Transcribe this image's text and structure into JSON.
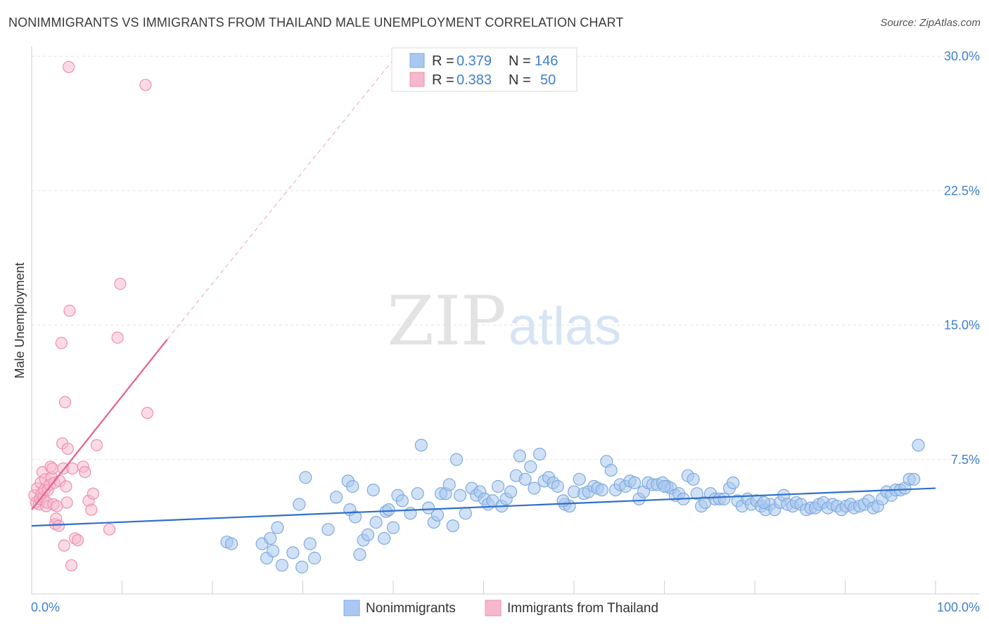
{
  "header": {
    "title": "NONIMMIGRANTS VS IMMIGRANTS FROM THAILAND MALE UNEMPLOYMENT CORRELATION CHART",
    "source": "Source: ZipAtlas.com"
  },
  "watermark": {
    "zip": "ZIP",
    "atlas": "atlas"
  },
  "legend": {
    "r_label": "R =",
    "n_label": "N =",
    "rows": [
      {
        "r": "0.379",
        "n": "146",
        "color": "#a9c8ef"
      },
      {
        "r": "0.383",
        "n": "50",
        "color": "#f6b8cb"
      }
    ]
  },
  "colors": {
    "blue_fill": "#a9c8ef",
    "blue_stroke": "#7eaae0",
    "blue_line": "#2f6fcc",
    "pink_fill": "#f6b8cb",
    "pink_stroke": "#ee8fae",
    "pink_line": "#e8608a",
    "axis_text": "#3f7fcf"
  },
  "chart_data": {
    "type": "scatter",
    "title": "NONIMMIGRANTS VS IMMIGRANTS FROM THAILAND MALE UNEMPLOYMENT CORRELATION CHART",
    "xlabel": "",
    "ylabel": "Male Unemployment",
    "xlim": [
      0,
      100
    ],
    "ylim": [
      0,
      30.0
    ],
    "x_tick_labels": [
      "0.0%",
      "100.0%"
    ],
    "y_ticks": [
      7.5,
      15.0,
      22.5,
      30.0
    ],
    "y_tick_labels": [
      "7.5%",
      "15.0%",
      "22.5%",
      "30.0%"
    ],
    "grid": true,
    "legend_position": "bottom",
    "series": [
      {
        "name": "Nonimmigrants",
        "r": 0.379,
        "n": 146,
        "trend": {
          "x": [
            0,
            100
          ],
          "y": [
            3.8,
            5.9
          ]
        },
        "points": [
          [
            21.6,
            2.9
          ],
          [
            22.1,
            2.8
          ],
          [
            25.5,
            2.8
          ],
          [
            26.0,
            2.0
          ],
          [
            26.4,
            3.1
          ],
          [
            26.7,
            2.4
          ],
          [
            27.2,
            3.7
          ],
          [
            27.7,
            1.6
          ],
          [
            28.9,
            2.3
          ],
          [
            29.6,
            5.0
          ],
          [
            29.9,
            1.5
          ],
          [
            30.3,
            6.5
          ],
          [
            30.8,
            2.8
          ],
          [
            31.3,
            2.0
          ],
          [
            32.8,
            3.6
          ],
          [
            33.7,
            5.4
          ],
          [
            35.0,
            6.3
          ],
          [
            35.2,
            4.7
          ],
          [
            35.8,
            4.3
          ],
          [
            36.3,
            2.2
          ],
          [
            36.7,
            3.0
          ],
          [
            37.2,
            3.3
          ],
          [
            37.8,
            5.8
          ],
          [
            38.1,
            4.0
          ],
          [
            39.0,
            3.1
          ],
          [
            39.2,
            4.6
          ],
          [
            39.5,
            4.7
          ],
          [
            40.0,
            3.7
          ],
          [
            40.5,
            5.5
          ],
          [
            41.0,
            5.2
          ],
          [
            41.9,
            4.5
          ],
          [
            42.7,
            5.6
          ],
          [
            43.1,
            8.3
          ],
          [
            43.9,
            4.8
          ],
          [
            44.5,
            4.0
          ],
          [
            44.9,
            4.4
          ],
          [
            45.3,
            5.6
          ],
          [
            45.8,
            5.6
          ],
          [
            46.6,
            3.8
          ],
          [
            47.0,
            7.5
          ],
          [
            47.4,
            5.5
          ],
          [
            48.0,
            4.5
          ],
          [
            48.7,
            5.9
          ],
          [
            49.2,
            5.5
          ],
          [
            49.6,
            5.7
          ],
          [
            50.1,
            5.3
          ],
          [
            50.5,
            5.0
          ],
          [
            51.0,
            5.2
          ],
          [
            51.6,
            6.0
          ],
          [
            52.0,
            4.9
          ],
          [
            52.5,
            5.3
          ],
          [
            53.0,
            5.7
          ],
          [
            53.6,
            6.6
          ],
          [
            54.0,
            7.7
          ],
          [
            54.6,
            6.4
          ],
          [
            55.2,
            7.1
          ],
          [
            55.6,
            5.9
          ],
          [
            56.2,
            7.8
          ],
          [
            56.7,
            6.3
          ],
          [
            57.2,
            6.5
          ],
          [
            57.7,
            6.2
          ],
          [
            58.2,
            6.0
          ],
          [
            59.0,
            5.0
          ],
          [
            59.5,
            4.9
          ],
          [
            60.0,
            5.7
          ],
          [
            60.6,
            6.4
          ],
          [
            61.1,
            5.6
          ],
          [
            61.6,
            5.7
          ],
          [
            62.2,
            6.0
          ],
          [
            62.6,
            5.9
          ],
          [
            63.1,
            5.8
          ],
          [
            63.6,
            7.4
          ],
          [
            64.1,
            6.9
          ],
          [
            64.6,
            5.8
          ],
          [
            65.1,
            6.1
          ],
          [
            65.7,
            6.0
          ],
          [
            66.2,
            6.3
          ],
          [
            66.7,
            6.2
          ],
          [
            67.2,
            5.3
          ],
          [
            67.7,
            5.7
          ],
          [
            68.2,
            6.2
          ],
          [
            68.7,
            6.1
          ],
          [
            69.2,
            6.1
          ],
          [
            69.8,
            6.2
          ],
          [
            70.3,
            6.0
          ],
          [
            70.7,
            5.9
          ],
          [
            71.2,
            5.5
          ],
          [
            71.6,
            5.6
          ],
          [
            72.1,
            5.3
          ],
          [
            72.6,
            6.6
          ],
          [
            73.2,
            6.4
          ],
          [
            73.6,
            5.6
          ],
          [
            74.1,
            4.9
          ],
          [
            74.5,
            5.1
          ],
          [
            75.1,
            5.6
          ],
          [
            75.6,
            5.3
          ],
          [
            76.1,
            5.3
          ],
          [
            76.6,
            5.3
          ],
          [
            77.2,
            5.9
          ],
          [
            77.6,
            6.2
          ],
          [
            78.1,
            5.2
          ],
          [
            78.6,
            4.9
          ],
          [
            79.2,
            5.3
          ],
          [
            79.6,
            5.0
          ],
          [
            80.2,
            5.2
          ],
          [
            80.7,
            4.9
          ],
          [
            81.2,
            4.7
          ],
          [
            81.7,
            5.0
          ],
          [
            82.2,
            4.7
          ],
          [
            82.8,
            5.1
          ],
          [
            83.2,
            5.5
          ],
          [
            83.6,
            5.0
          ],
          [
            84.2,
            4.9
          ],
          [
            84.6,
            5.1
          ],
          [
            85.1,
            5.0
          ],
          [
            85.7,
            4.7
          ],
          [
            86.2,
            4.8
          ],
          [
            86.7,
            4.8
          ],
          [
            87.1,
            5.0
          ],
          [
            87.6,
            5.1
          ],
          [
            88.1,
            4.8
          ],
          [
            88.6,
            5.0
          ],
          [
            89.1,
            4.9
          ],
          [
            89.6,
            4.7
          ],
          [
            90.1,
            4.9
          ],
          [
            90.6,
            5.0
          ],
          [
            91.0,
            4.8
          ],
          [
            91.6,
            4.9
          ],
          [
            92.1,
            5.0
          ],
          [
            92.6,
            5.2
          ],
          [
            93.1,
            4.8
          ],
          [
            93.6,
            4.9
          ],
          [
            94.1,
            5.3
          ],
          [
            94.6,
            5.7
          ],
          [
            95.1,
            5.5
          ],
          [
            95.6,
            5.8
          ],
          [
            96.1,
            5.8
          ],
          [
            96.6,
            5.9
          ],
          [
            97.1,
            6.4
          ],
          [
            97.6,
            6.4
          ],
          [
            98.1,
            8.3
          ],
          [
            35.5,
            6.0
          ],
          [
            46.2,
            6.1
          ],
          [
            58.8,
            5.2
          ],
          [
            70.0,
            6.0
          ],
          [
            81.0,
            5.1
          ]
        ]
      },
      {
        "name": "Immigrants from Thailand",
        "r": 0.383,
        "n": 50,
        "trend": {
          "x": [
            0,
            15
          ],
          "y": [
            4.7,
            14.2
          ]
        },
        "trend_extended": {
          "x": [
            15,
            40
          ],
          "y": [
            14.2,
            29.8
          ]
        },
        "points": [
          [
            0.3,
            5.5
          ],
          [
            0.5,
            5.1
          ],
          [
            0.6,
            5.9
          ],
          [
            0.8,
            5.0
          ],
          [
            0.9,
            5.3
          ],
          [
            1.0,
            6.2
          ],
          [
            1.1,
            5.6
          ],
          [
            1.2,
            6.8
          ],
          [
            1.3,
            5.4
          ],
          [
            1.4,
            5.8
          ],
          [
            1.5,
            6.4
          ],
          [
            1.6,
            4.9
          ],
          [
            1.7,
            5.1
          ],
          [
            1.8,
            5.8
          ],
          [
            2.0,
            6.1
          ],
          [
            2.1,
            7.1
          ],
          [
            2.2,
            6.5
          ],
          [
            2.3,
            7.0
          ],
          [
            2.4,
            5.0
          ],
          [
            2.5,
            6.2
          ],
          [
            2.6,
            3.9
          ],
          [
            2.7,
            4.2
          ],
          [
            2.8,
            4.9
          ],
          [
            3.0,
            3.8
          ],
          [
            3.1,
            6.3
          ],
          [
            3.3,
            14.0
          ],
          [
            3.4,
            8.4
          ],
          [
            3.5,
            7.0
          ],
          [
            3.6,
            2.7
          ],
          [
            3.7,
            10.7
          ],
          [
            3.8,
            6.0
          ],
          [
            3.9,
            5.1
          ],
          [
            4.0,
            8.1
          ],
          [
            4.2,
            15.8
          ],
          [
            4.4,
            1.6
          ],
          [
            4.1,
            29.4
          ],
          [
            4.5,
            7.0
          ],
          [
            4.8,
            3.1
          ],
          [
            5.1,
            3.0
          ],
          [
            5.7,
            7.1
          ],
          [
            5.9,
            6.8
          ],
          [
            6.3,
            5.2
          ],
          [
            6.6,
            4.7
          ],
          [
            6.8,
            5.6
          ],
          [
            7.2,
            8.3
          ],
          [
            8.6,
            3.6
          ],
          [
            9.5,
            14.3
          ],
          [
            9.8,
            17.3
          ],
          [
            12.6,
            28.4
          ],
          [
            12.8,
            10.1
          ]
        ]
      }
    ]
  }
}
